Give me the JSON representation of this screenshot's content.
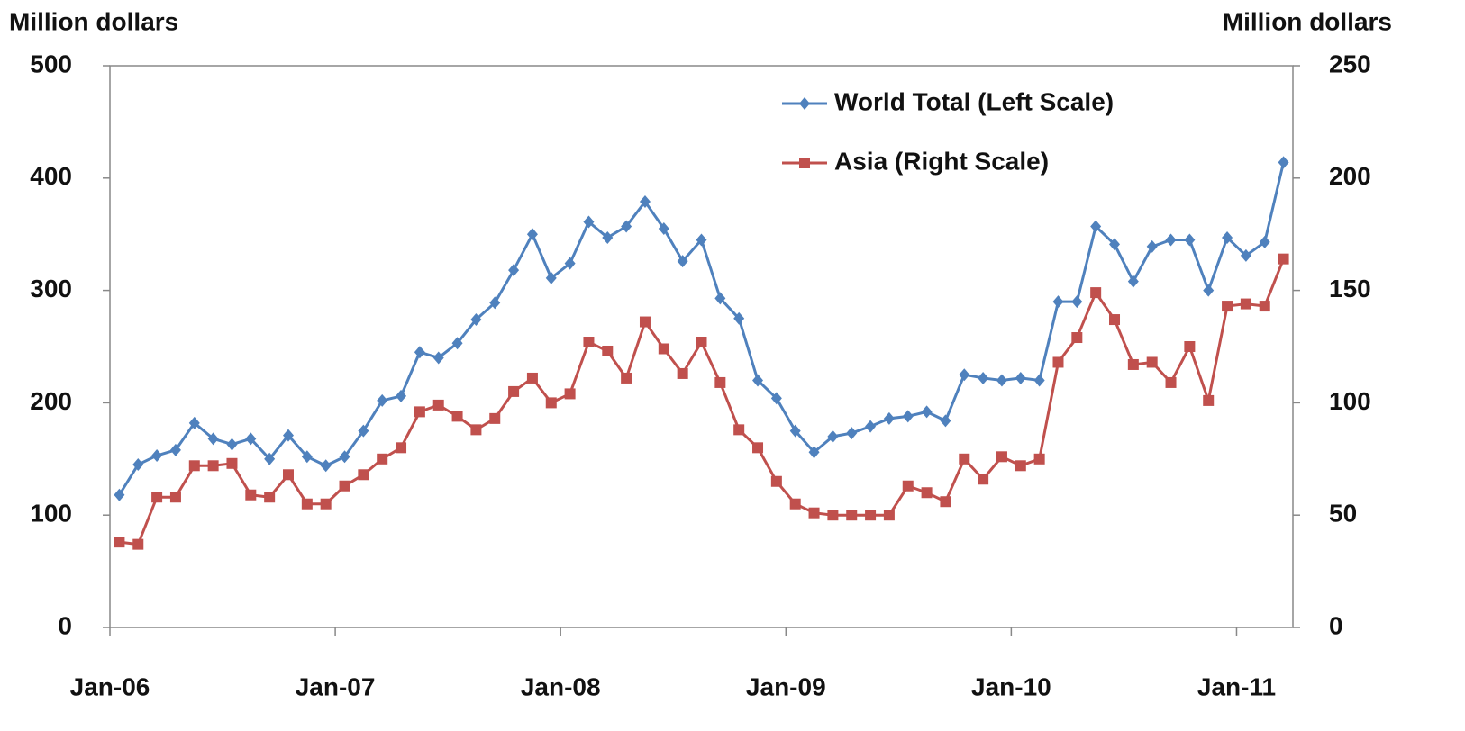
{
  "chart_data": {
    "type": "line",
    "y_label": "Million dollars",
    "y2_label": "Million dollars",
    "categories": [
      "Jan-06",
      null,
      null,
      null,
      null,
      null,
      null,
      null,
      null,
      null,
      null,
      null,
      "Jan-07",
      null,
      null,
      null,
      null,
      null,
      null,
      null,
      null,
      null,
      null,
      null,
      "Jan-08",
      null,
      null,
      null,
      null,
      null,
      null,
      null,
      null,
      null,
      null,
      null,
      "Jan-09",
      null,
      null,
      null,
      null,
      null,
      null,
      null,
      null,
      null,
      null,
      null,
      "Jan-10",
      null,
      null,
      null,
      null,
      null,
      null,
      null,
      null,
      null,
      null,
      null,
      "Jan-11",
      null,
      null
    ],
    "series": [
      {
        "name": "World Total (Left Scale)",
        "color": "#4f81bd",
        "marker": "diamond",
        "axis": "y",
        "values": [
          118,
          145,
          153,
          158,
          182,
          168,
          163,
          168,
          150,
          171,
          152,
          144,
          152,
          175,
          202,
          206,
          245,
          240,
          253,
          274,
          289,
          318,
          350,
          311,
          324,
          361,
          347,
          357,
          379,
          355,
          326,
          345,
          293,
          275,
          220,
          204,
          175,
          156,
          170,
          173,
          179,
          186,
          188,
          192,
          184,
          225,
          222,
          220,
          222,
          220,
          290,
          290,
          357,
          341,
          308,
          339,
          345,
          345,
          300,
          347,
          331,
          343,
          414
        ]
      },
      {
        "name": "Asia (Right Scale)",
        "color": "#c0504d",
        "marker": "square",
        "axis": "y2",
        "values": [
          38,
          37,
          58,
          58,
          72,
          72,
          73,
          59,
          58,
          68,
          55,
          55,
          63,
          68,
          75,
          80,
          96,
          99,
          94,
          88,
          93,
          105,
          111,
          100,
          104,
          127,
          123,
          111,
          136,
          124,
          113,
          127,
          109,
          88,
          80,
          65,
          55,
          51,
          50,
          50,
          50,
          50,
          63,
          60,
          56,
          75,
          66,
          76,
          72,
          75,
          118,
          129,
          149,
          137,
          117,
          118,
          109,
          125,
          101,
          143,
          144,
          143,
          164
        ]
      }
    ],
    "ylim": [
      0,
      500
    ],
    "yticks": [
      0,
      100,
      200,
      300,
      400,
      500
    ],
    "y2lim": [
      0,
      250
    ],
    "y2ticks": [
      0,
      50,
      100,
      150,
      200,
      250
    ],
    "legend": "top-right",
    "grid": false
  }
}
